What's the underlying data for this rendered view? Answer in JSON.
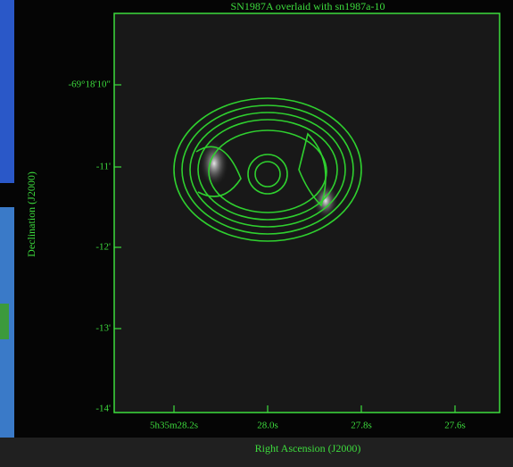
{
  "plot": {
    "title": "SN1987A overlaid with sn1987a-10",
    "x_label": "Right Ascension (J2000)",
    "y_label": "Declination (J2000)",
    "x_tick_labels": [
      "5h35m28.2s",
      "28.0s",
      "27.8s",
      "27.6s"
    ],
    "y_tick_labels": [
      "-69°18'10\"",
      "-11'",
      "-12'",
      "-13'",
      "-14'"
    ]
  }
}
